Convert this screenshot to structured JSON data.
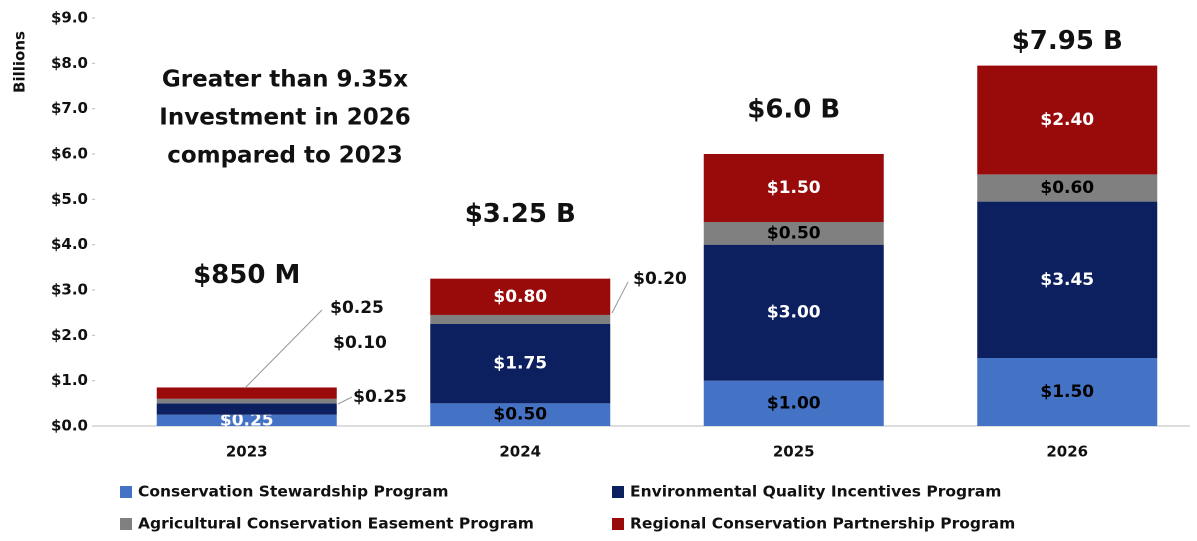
{
  "chart_data": {
    "type": "stacked_bar",
    "y_axis_label": "Billions",
    "annotation": [
      "Greater than 9.35x",
      "Investment in 2026",
      "compared to 2023"
    ],
    "categories": [
      "2023",
      "2024",
      "2025",
      "2026"
    ],
    "series": [
      {
        "name": "Conservation Stewardship Program",
        "color": "#4472c4",
        "values": [
          0.25,
          0.5,
          1.0,
          1.5
        ],
        "value_labels": [
          "$0.25",
          "$0.50",
          "$1.00",
          "$1.50"
        ]
      },
      {
        "name": "Environmental Quality Incentives Program",
        "color": "#0c1f5e",
        "values": [
          0.25,
          1.75,
          3.0,
          3.45
        ],
        "value_labels": [
          "$0.25",
          "$1.75",
          "$3.00",
          "$3.45"
        ]
      },
      {
        "name": "Agricultural Conservation Easement Program",
        "color": "#808080",
        "values": [
          0.1,
          0.2,
          0.5,
          0.6
        ],
        "value_labels": [
          "$0.10",
          "$0.20",
          "$0.50",
          "$0.60"
        ]
      },
      {
        "name": "Regional Conservation Partnership Program",
        "color": "#990a0a",
        "values": [
          0.25,
          0.8,
          1.5,
          2.4
        ],
        "value_labels": [
          "$0.25",
          "$0.80",
          "$1.50",
          "$2.40"
        ]
      }
    ],
    "totals": {
      "values": [
        0.85,
        3.25,
        6.0,
        7.95
      ],
      "value_labels": [
        "$850 M",
        "$3.25 B",
        "$6.0 B",
        "$7.95 B"
      ]
    },
    "ylim": [
      0,
      9
    ],
    "yticks": [
      {
        "value": 0,
        "label": "$0.0"
      },
      {
        "value": 1,
        "label": "$1.0"
      },
      {
        "value": 2,
        "label": "$2.0"
      },
      {
        "value": 3,
        "label": "$3.0"
      },
      {
        "value": 4,
        "label": "$4.0"
      },
      {
        "value": 5,
        "label": "$5.0"
      },
      {
        "value": 6,
        "label": "$6.0"
      },
      {
        "value": 7,
        "label": "$7.0"
      },
      {
        "value": 8,
        "label": "$8.0"
      },
      {
        "value": 9,
        "label": "$9.0"
      }
    ],
    "grid": false
  }
}
